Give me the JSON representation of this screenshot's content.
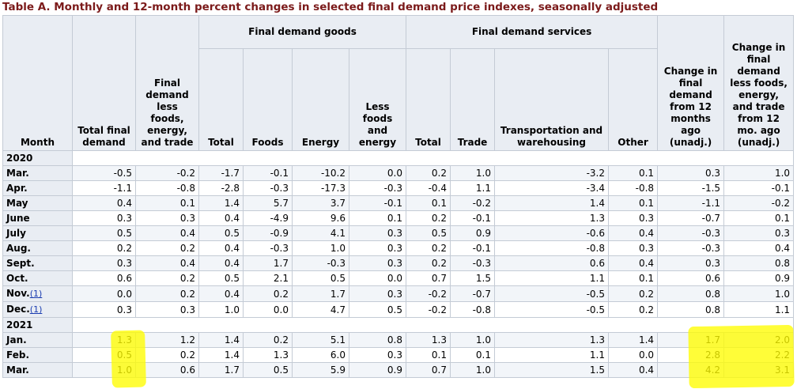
{
  "title": "Table A. Monthly and 12-month percent changes in selected final demand price indexes, seasonally adjusted",
  "headers": {
    "month": "Month",
    "total_final_demand": "Total final demand",
    "fd_less": "Final demand less foods, energy, and trade",
    "goods_group": "Final demand goods",
    "services_group": "Final demand services",
    "goods_total": "Total",
    "goods_foods": "Foods",
    "goods_energy": "Energy",
    "goods_less": "Less foods and energy",
    "services_total": "Total",
    "services_trade": "Trade",
    "services_transport": "Transportation and warehousing",
    "services_other": "Other",
    "change_12": "Change in final demand from 12 months ago (unadj.)",
    "change_less_12": "Change in final demand less foods, energy, and trade from 12 mo. ago (unadj.)"
  },
  "groups": [
    {
      "year": "2020",
      "rows": [
        {
          "month": "Mar.",
          "fn": "",
          "values": [
            "-0.5",
            "-0.2",
            "-1.7",
            "-0.1",
            "-10.2",
            "0.0",
            "0.2",
            "1.0",
            "-3.2",
            "0.1",
            "0.3",
            "1.0"
          ]
        },
        {
          "month": "Apr.",
          "fn": "",
          "values": [
            "-1.1",
            "-0.8",
            "-2.8",
            "-0.3",
            "-17.3",
            "-0.3",
            "-0.4",
            "1.1",
            "-3.4",
            "-0.8",
            "-1.5",
            "-0.1"
          ]
        },
        {
          "month": "May",
          "fn": "",
          "values": [
            "0.4",
            "0.1",
            "1.4",
            "5.7",
            "3.7",
            "-0.1",
            "0.1",
            "-0.2",
            "1.4",
            "0.1",
            "-1.1",
            "-0.2"
          ]
        },
        {
          "month": "June",
          "fn": "",
          "values": [
            "0.3",
            "0.3",
            "0.4",
            "-4.9",
            "9.6",
            "0.1",
            "0.2",
            "-0.1",
            "1.3",
            "0.3",
            "-0.7",
            "0.1"
          ]
        },
        {
          "month": "July",
          "fn": "",
          "values": [
            "0.5",
            "0.4",
            "0.5",
            "-0.9",
            "4.1",
            "0.3",
            "0.5",
            "0.9",
            "-0.6",
            "0.4",
            "-0.3",
            "0.3"
          ]
        },
        {
          "month": "Aug.",
          "fn": "",
          "values": [
            "0.2",
            "0.2",
            "0.4",
            "-0.3",
            "1.0",
            "0.3",
            "0.2",
            "-0.1",
            "-0.8",
            "0.3",
            "-0.3",
            "0.4"
          ]
        },
        {
          "month": "Sept.",
          "fn": "",
          "values": [
            "0.3",
            "0.4",
            "0.4",
            "1.7",
            "-0.3",
            "0.3",
            "0.2",
            "-0.3",
            "0.6",
            "0.4",
            "0.3",
            "0.8"
          ]
        },
        {
          "month": "Oct.",
          "fn": "",
          "values": [
            "0.6",
            "0.2",
            "0.5",
            "2.1",
            "0.5",
            "0.0",
            "0.7",
            "1.5",
            "1.1",
            "0.1",
            "0.6",
            "0.9"
          ]
        },
        {
          "month": "Nov.",
          "fn": "(1)",
          "values": [
            "0.0",
            "0.2",
            "0.4",
            "0.2",
            "1.7",
            "0.3",
            "-0.2",
            "-0.7",
            "-0.5",
            "0.2",
            "0.8",
            "1.0"
          ]
        },
        {
          "month": "Dec.",
          "fn": "(1)",
          "values": [
            "0.3",
            "0.3",
            "1.0",
            "0.0",
            "4.7",
            "0.5",
            "-0.2",
            "-0.8",
            "-0.5",
            "0.2",
            "0.8",
            "1.1"
          ]
        }
      ]
    },
    {
      "year": "2021",
      "rows": [
        {
          "month": "Jan.",
          "fn": "",
          "values": [
            "1.3",
            "1.2",
            "1.4",
            "0.2",
            "5.1",
            "0.8",
            "1.3",
            "1.0",
            "1.3",
            "1.4",
            "1.7",
            "2.0"
          ]
        },
        {
          "month": "Feb.",
          "fn": "",
          "values": [
            "0.5",
            "0.2",
            "1.4",
            "1.3",
            "6.0",
            "0.3",
            "0.1",
            "0.1",
            "1.1",
            "0.0",
            "2.8",
            "2.2"
          ]
        },
        {
          "month": "Mar.",
          "fn": "",
          "values": [
            "1.0",
            "0.6",
            "1.7",
            "0.5",
            "5.9",
            "0.9",
            "0.7",
            "1.0",
            "1.5",
            "0.4",
            "4.2",
            "3.1"
          ]
        }
      ]
    }
  ],
  "colors": {
    "highlight": "#fff200",
    "title": "#7b1a1a",
    "header_bg": "#e9edf3",
    "footnote_link": "#1a3cb0"
  }
}
